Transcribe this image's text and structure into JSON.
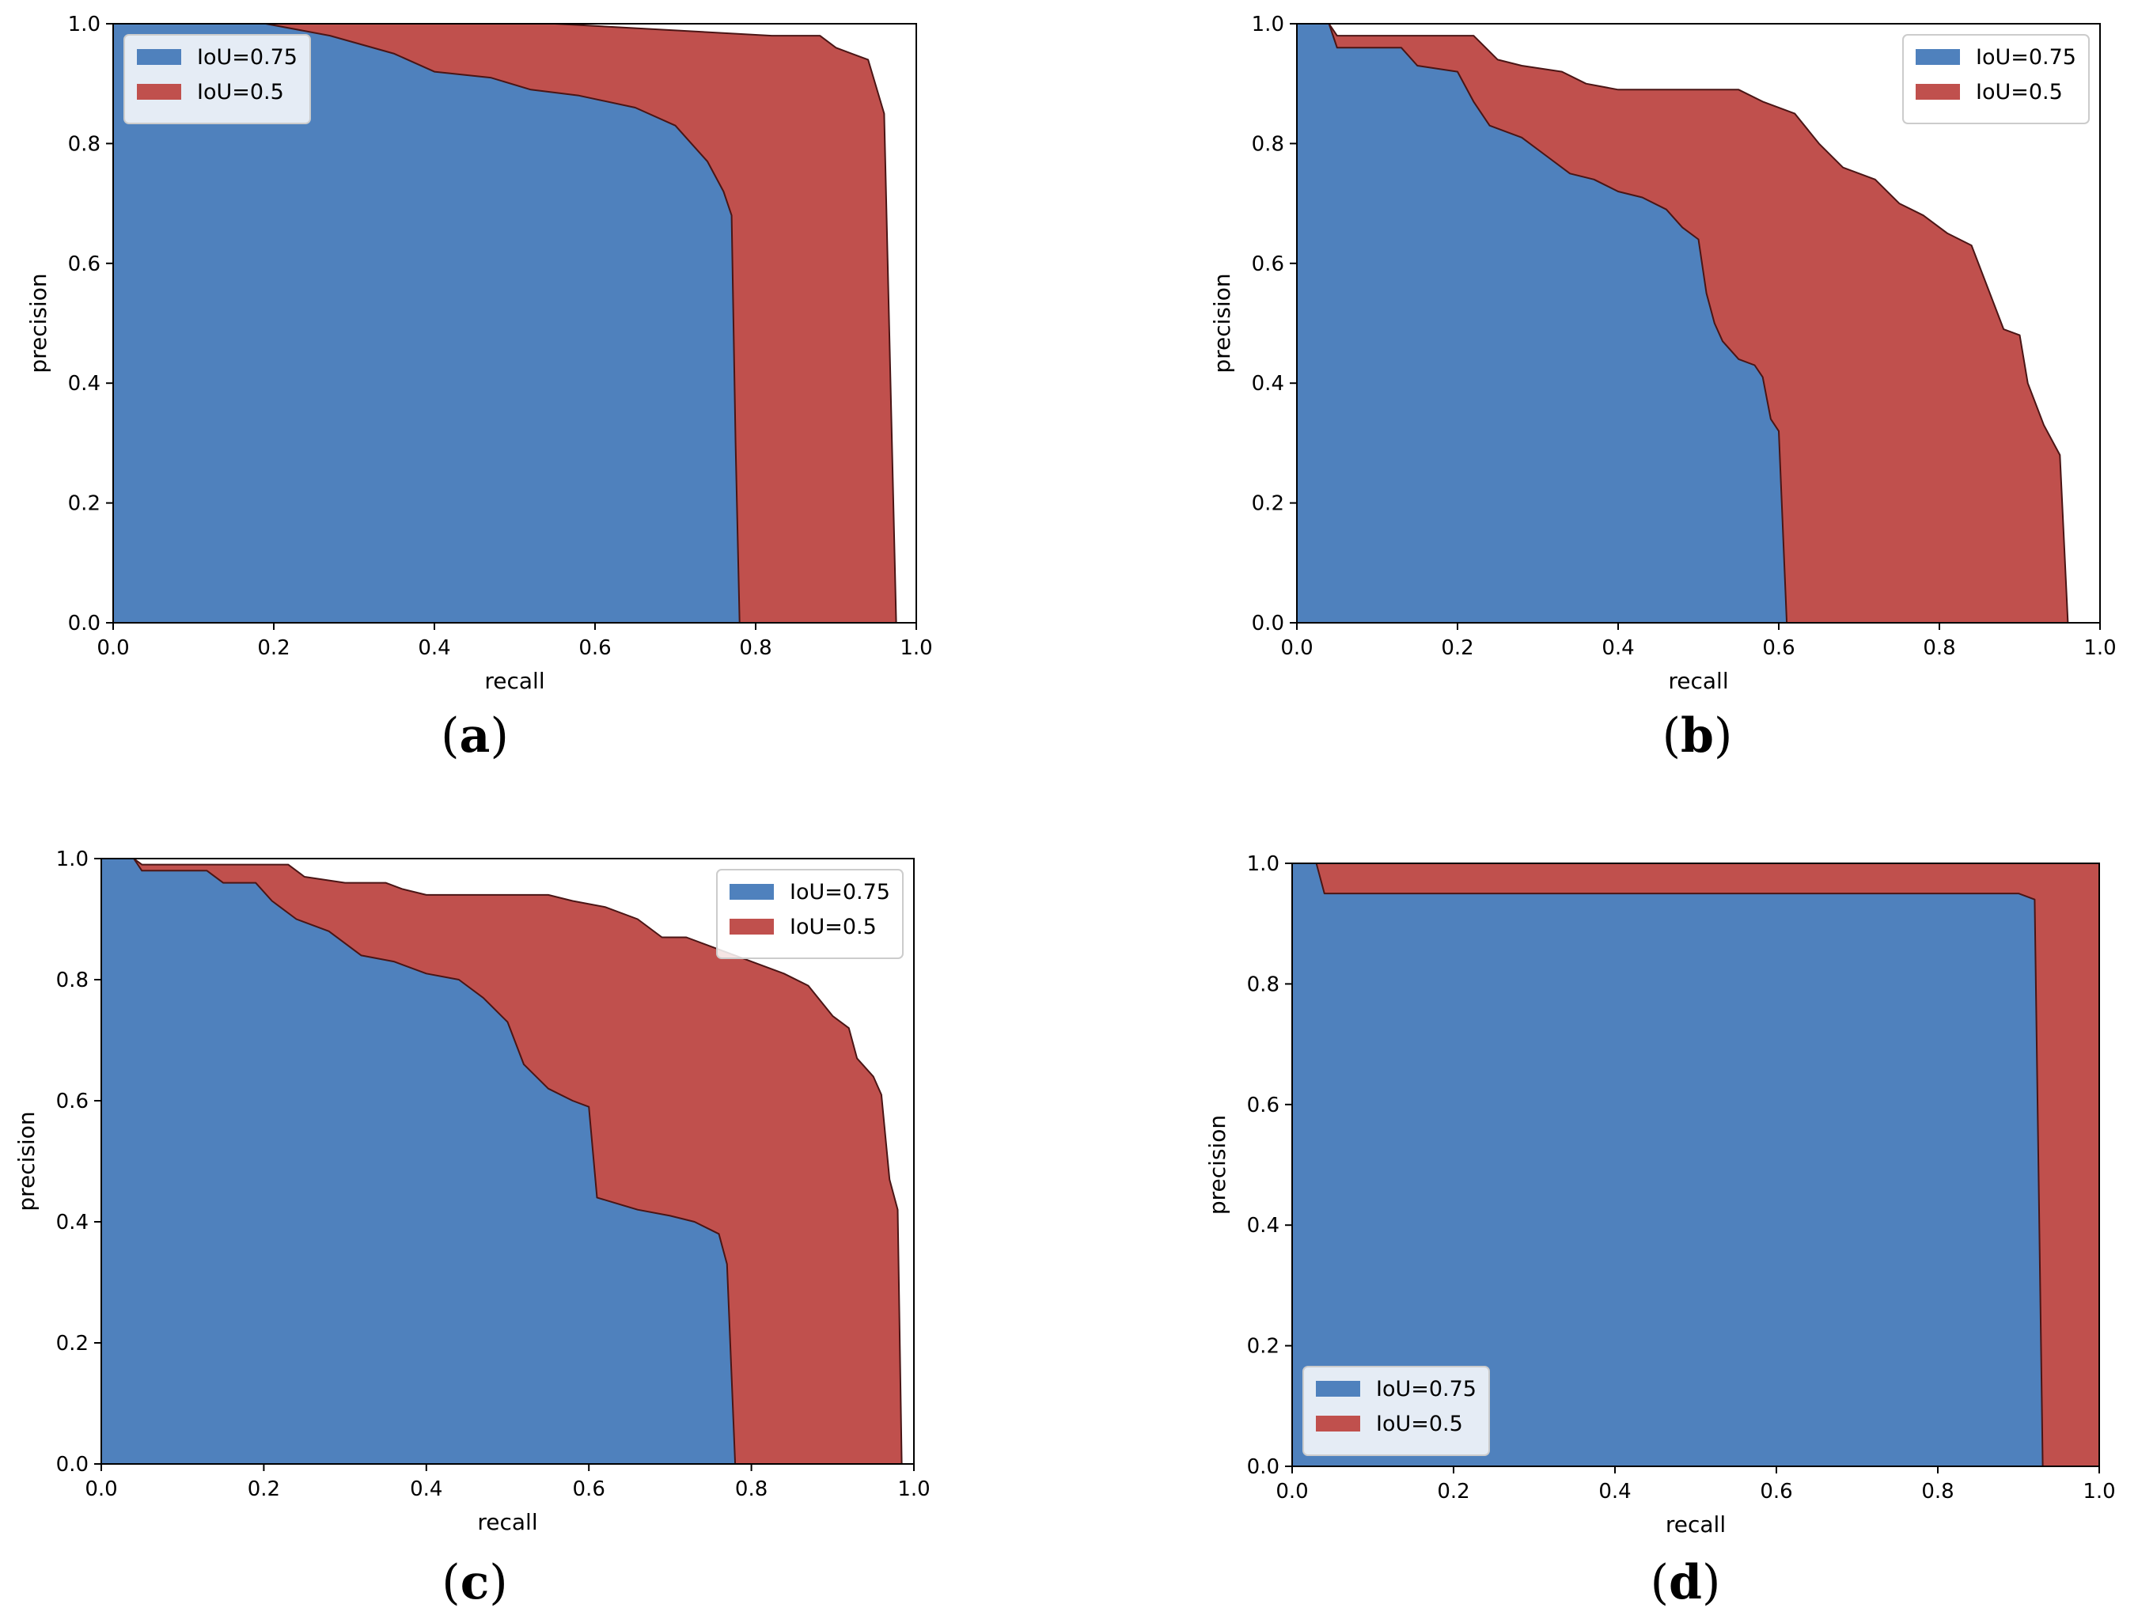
{
  "colors": {
    "iou075": "#4f81bd",
    "iou05": "#c0504d",
    "edge": "#4a1515",
    "axes": "#000000",
    "legend_bg": "#ffffff",
    "legend_border": "#cccccc"
  },
  "chart_data": [
    {
      "id": "a",
      "type": "area",
      "caption": "a",
      "xlabel": "recall",
      "ylabel": "precision",
      "xlim": [
        0,
        1
      ],
      "ylim": [
        0,
        1
      ],
      "xticks": [
        "0.0",
        "0.2",
        "0.4",
        "0.6",
        "0.8",
        "1.0"
      ],
      "yticks": [
        "0.0",
        "0.2",
        "0.4",
        "0.6",
        "0.8",
        "1.0"
      ],
      "grid": false,
      "legend_position": "top-left",
      "series": [
        {
          "name": "IoU=0.5",
          "color_key": "iou05",
          "points": [
            [
              0,
              1
            ],
            [
              0.55,
              1
            ],
            [
              0.82,
              0.98
            ],
            [
              0.88,
              0.98
            ],
            [
              0.9,
              0.96
            ],
            [
              0.92,
              0.95
            ],
            [
              0.94,
              0.94
            ],
            [
              0.96,
              0.85
            ],
            [
              0.975,
              0
            ],
            [
              1,
              0
            ]
          ]
        },
        {
          "name": "IoU=0.75",
          "color_key": "iou075",
          "points": [
            [
              0,
              1
            ],
            [
              0.19,
              1
            ],
            [
              0.27,
              0.98
            ],
            [
              0.35,
              0.95
            ],
            [
              0.4,
              0.92
            ],
            [
              0.47,
              0.91
            ],
            [
              0.52,
              0.89
            ],
            [
              0.58,
              0.88
            ],
            [
              0.65,
              0.86
            ],
            [
              0.7,
              0.83
            ],
            [
              0.72,
              0.8
            ],
            [
              0.74,
              0.77
            ],
            [
              0.76,
              0.72
            ],
            [
              0.77,
              0.68
            ],
            [
              0.775,
              0.3
            ],
            [
              0.78,
              0
            ],
            [
              1,
              0
            ]
          ]
        }
      ]
    },
    {
      "id": "b",
      "type": "area",
      "caption": "b",
      "xlabel": "recall",
      "ylabel": "precision",
      "xlim": [
        0,
        1
      ],
      "ylim": [
        0,
        1
      ],
      "xticks": [
        "0.0",
        "0.2",
        "0.4",
        "0.6",
        "0.8",
        "1.0"
      ],
      "yticks": [
        "0.0",
        "0.2",
        "0.4",
        "0.6",
        "0.8",
        "1.0"
      ],
      "grid": false,
      "legend_position": "top-right",
      "series": [
        {
          "name": "IoU=0.5",
          "color_key": "iou05",
          "points": [
            [
              0,
              1
            ],
            [
              0.04,
              1
            ],
            [
              0.05,
              0.98
            ],
            [
              0.22,
              0.98
            ],
            [
              0.25,
              0.94
            ],
            [
              0.28,
              0.93
            ],
            [
              0.33,
              0.92
            ],
            [
              0.36,
              0.9
            ],
            [
              0.4,
              0.89
            ],
            [
              0.48,
              0.89
            ],
            [
              0.55,
              0.89
            ],
            [
              0.58,
              0.87
            ],
            [
              0.62,
              0.85
            ],
            [
              0.65,
              0.8
            ],
            [
              0.68,
              0.76
            ],
            [
              0.72,
              0.74
            ],
            [
              0.75,
              0.7
            ],
            [
              0.78,
              0.68
            ],
            [
              0.81,
              0.65
            ],
            [
              0.84,
              0.63
            ],
            [
              0.86,
              0.56
            ],
            [
              0.88,
              0.49
            ],
            [
              0.9,
              0.48
            ],
            [
              0.91,
              0.4
            ],
            [
              0.93,
              0.33
            ],
            [
              0.95,
              0.28
            ],
            [
              0.96,
              0
            ],
            [
              1,
              0
            ]
          ]
        },
        {
          "name": "IoU=0.75",
          "color_key": "iou075",
          "points": [
            [
              0,
              1
            ],
            [
              0.04,
              1
            ],
            [
              0.05,
              0.96
            ],
            [
              0.13,
              0.96
            ],
            [
              0.15,
              0.93
            ],
            [
              0.2,
              0.92
            ],
            [
              0.22,
              0.87
            ],
            [
              0.24,
              0.83
            ],
            [
              0.28,
              0.81
            ],
            [
              0.31,
              0.78
            ],
            [
              0.34,
              0.75
            ],
            [
              0.37,
              0.74
            ],
            [
              0.4,
              0.72
            ],
            [
              0.43,
              0.71
            ],
            [
              0.46,
              0.69
            ],
            [
              0.48,
              0.66
            ],
            [
              0.5,
              0.64
            ],
            [
              0.51,
              0.55
            ],
            [
              0.52,
              0.5
            ],
            [
              0.53,
              0.47
            ],
            [
              0.55,
              0.44
            ],
            [
              0.57,
              0.43
            ],
            [
              0.58,
              0.41
            ],
            [
              0.59,
              0.34
            ],
            [
              0.6,
              0.32
            ],
            [
              0.61,
              0
            ],
            [
              1,
              0
            ]
          ]
        }
      ]
    },
    {
      "id": "c",
      "type": "area",
      "caption": "c",
      "xlabel": "recall",
      "ylabel": "precision",
      "xlim": [
        0,
        1
      ],
      "ylim": [
        0,
        1
      ],
      "xticks": [
        "0.0",
        "0.2",
        "0.4",
        "0.6",
        "0.8",
        "1.0"
      ],
      "yticks": [
        "0.0",
        "0.2",
        "0.4",
        "0.6",
        "0.8",
        "1.0"
      ],
      "grid": false,
      "legend_position": "top-right",
      "series": [
        {
          "name": "IoU=0.5",
          "color_key": "iou05",
          "points": [
            [
              0,
              1
            ],
            [
              0.04,
              1
            ],
            [
              0.05,
              0.99
            ],
            [
              0.23,
              0.99
            ],
            [
              0.25,
              0.97
            ],
            [
              0.3,
              0.96
            ],
            [
              0.35,
              0.96
            ],
            [
              0.37,
              0.95
            ],
            [
              0.4,
              0.94
            ],
            [
              0.5,
              0.94
            ],
            [
              0.55,
              0.94
            ],
            [
              0.58,
              0.93
            ],
            [
              0.62,
              0.92
            ],
            [
              0.66,
              0.9
            ],
            [
              0.69,
              0.87
            ],
            [
              0.72,
              0.87
            ],
            [
              0.76,
              0.85
            ],
            [
              0.8,
              0.83
            ],
            [
              0.84,
              0.81
            ],
            [
              0.87,
              0.79
            ],
            [
              0.9,
              0.74
            ],
            [
              0.92,
              0.72
            ],
            [
              0.93,
              0.67
            ],
            [
              0.95,
              0.64
            ],
            [
              0.96,
              0.61
            ],
            [
              0.97,
              0.47
            ],
            [
              0.98,
              0.42
            ],
            [
              0.985,
              0
            ],
            [
              1,
              0
            ]
          ]
        },
        {
          "name": "IoU=0.75",
          "color_key": "iou075",
          "points": [
            [
              0,
              1
            ],
            [
              0.04,
              1
            ],
            [
              0.05,
              0.98
            ],
            [
              0.13,
              0.98
            ],
            [
              0.15,
              0.96
            ],
            [
              0.19,
              0.96
            ],
            [
              0.21,
              0.93
            ],
            [
              0.24,
              0.9
            ],
            [
              0.28,
              0.88
            ],
            [
              0.32,
              0.84
            ],
            [
              0.36,
              0.83
            ],
            [
              0.4,
              0.81
            ],
            [
              0.44,
              0.8
            ],
            [
              0.47,
              0.77
            ],
            [
              0.5,
              0.73
            ],
            [
              0.52,
              0.66
            ],
            [
              0.55,
              0.62
            ],
            [
              0.58,
              0.6
            ],
            [
              0.6,
              0.59
            ],
            [
              0.61,
              0.44
            ],
            [
              0.66,
              0.42
            ],
            [
              0.7,
              0.41
            ],
            [
              0.73,
              0.4
            ],
            [
              0.76,
              0.38
            ],
            [
              0.77,
              0.33
            ],
            [
              0.78,
              0
            ],
            [
              1,
              0
            ]
          ]
        }
      ]
    },
    {
      "id": "d",
      "type": "area",
      "caption": "d",
      "xlabel": "recall",
      "ylabel": "precision",
      "xlim": [
        0,
        1
      ],
      "ylim": [
        0,
        1
      ],
      "xticks": [
        "0.0",
        "0.2",
        "0.4",
        "0.6",
        "0.8",
        "1.0"
      ],
      "yticks": [
        "0.0",
        "0.2",
        "0.4",
        "0.6",
        "0.8",
        "1.0"
      ],
      "grid": false,
      "legend_position": "bottom-left",
      "series": [
        {
          "name": "IoU=0.5",
          "color_key": "iou05",
          "points": [
            [
              0,
              1
            ],
            [
              1,
              1
            ],
            [
              1,
              0
            ]
          ]
        },
        {
          "name": "IoU=0.75",
          "color_key": "iou075",
          "points": [
            [
              0,
              1
            ],
            [
              0.03,
              1
            ],
            [
              0.04,
              0.95
            ],
            [
              0.85,
              0.95
            ],
            [
              0.9,
              0.95
            ],
            [
              0.92,
              0.94
            ],
            [
              0.93,
              0
            ],
            [
              1,
              0
            ]
          ]
        }
      ]
    }
  ]
}
